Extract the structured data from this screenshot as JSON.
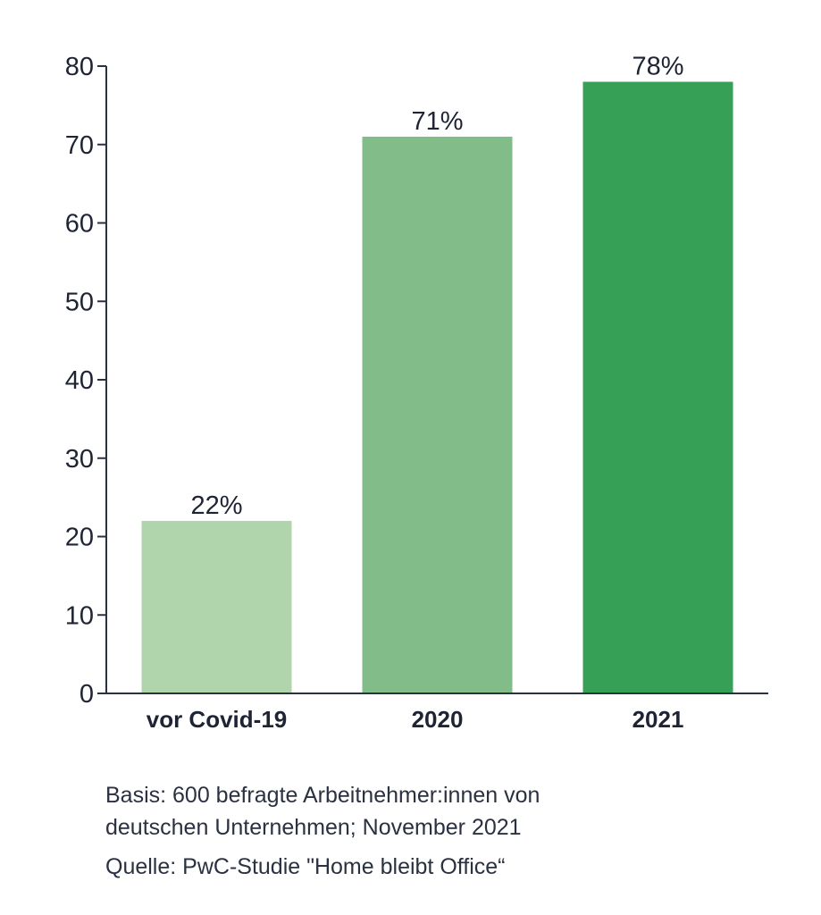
{
  "chart_data": {
    "type": "bar",
    "categories": [
      "vor Covid-19",
      "2020",
      "2021"
    ],
    "values": [
      22,
      71,
      78
    ],
    "data_labels": [
      "22%",
      "71%",
      "78%"
    ],
    "ylim": [
      0,
      80
    ],
    "yticks": [
      0,
      10,
      20,
      30,
      40,
      50,
      60,
      70,
      80
    ],
    "grid": false,
    "bar_colors": [
      "#b0d5ad",
      "#82bd89",
      "#36a156"
    ],
    "axis_color": "#2a3140"
  },
  "footnote": {
    "basis_line1": "Basis: 600 befragte Arbeitnehmer:innen von",
    "basis_line2": "deutschen Unternehmen; November 2021",
    "source": "Quelle: PwC-Studie \"Home bleibt Office“"
  }
}
